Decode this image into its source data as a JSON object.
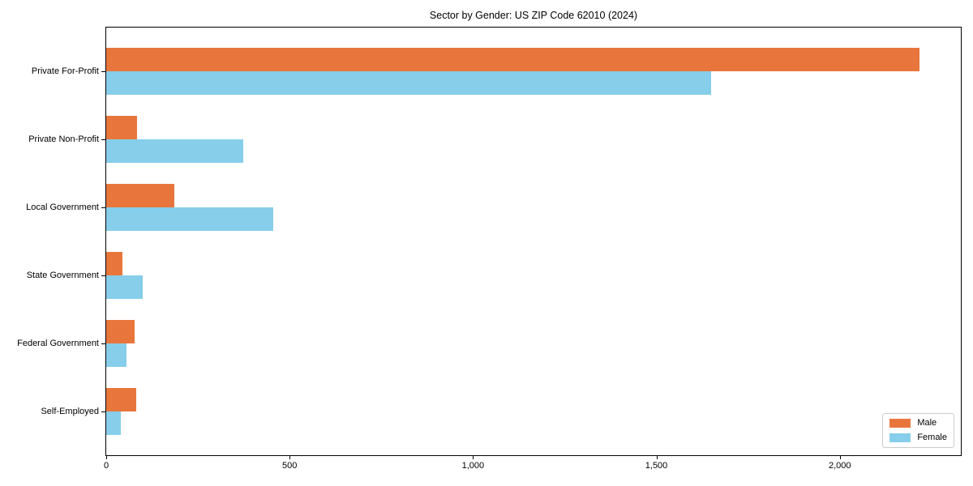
{
  "figure": {
    "background": "#ffffff"
  },
  "chart_data": {
    "type": "bar",
    "orientation": "horizontal",
    "title": "Sector by Gender: US ZIP Code 62010 (2024)",
    "xlabel": "",
    "ylabel": "",
    "categories": [
      "Private For-Profit",
      "Private Non-Profit",
      "Local Government",
      "State Government",
      "Federal Government",
      "Self-Employed"
    ],
    "series": [
      {
        "name": "Male",
        "color": "#E8763C",
        "values": [
          2217,
          83,
          186,
          44,
          77,
          81
        ]
      },
      {
        "name": "Female",
        "color": "#87CEEB",
        "values": [
          1649,
          373,
          456,
          99,
          55,
          40
        ]
      }
    ],
    "xlim": [
      0,
      2330
    ],
    "xticks": {
      "values": [
        0,
        500,
        1000,
        1500,
        2000
      ],
      "labels": [
        "0",
        "500",
        "1,000",
        "1,500",
        "2,000"
      ]
    },
    "grid": false,
    "legend": {
      "position": "lower right"
    },
    "axis_color": "#000000"
  }
}
